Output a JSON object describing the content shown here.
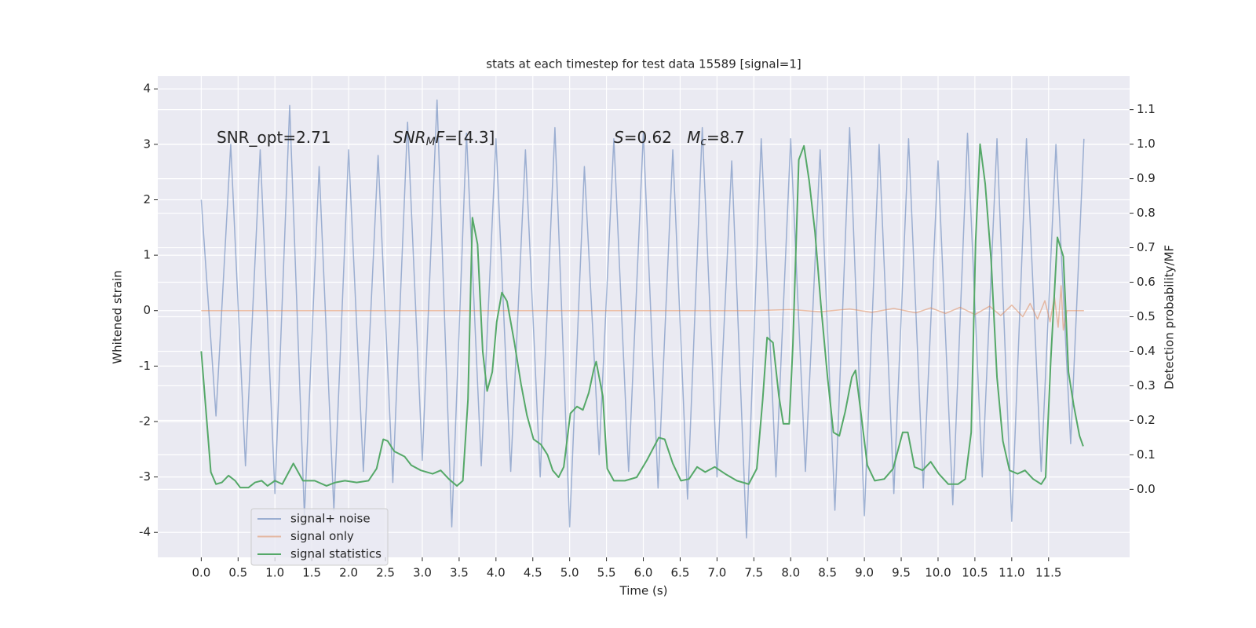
{
  "chart_data": {
    "type": "line",
    "title": "stats at each timestep for test data 15589 [signal=1]",
    "xlabel": "Time (s)",
    "ylabel": "Whitened strain",
    "y2label": "Detection probability/MF",
    "xlim": [
      -0.59,
      12.6
    ],
    "ylim": [
      -4.45,
      4.23
    ],
    "y2lim": [
      -0.197,
      1.197
    ],
    "xticks": [
      {
        "value": 0,
        "label": "0.0"
      },
      0.5,
      {
        "value": 1,
        "label": "1.0"
      },
      1.5,
      {
        "value": 2,
        "label": "2.0"
      },
      2.5,
      {
        "value": 3,
        "label": "3.0"
      },
      3.5,
      {
        "value": 4,
        "label": "4.0"
      },
      4.5,
      {
        "value": 5,
        "label": "5.0"
      },
      5.5,
      {
        "value": 6,
        "label": "6.0"
      },
      6.5,
      {
        "value": 7,
        "label": "7.0"
      },
      7.5,
      {
        "value": 8,
        "label": "8.0"
      },
      8.5,
      {
        "value": 9,
        "label": "9.0"
      },
      9.5,
      {
        "value": 10,
        "label": "10.0"
      },
      10.5,
      {
        "value": 11,
        "label": "11.0"
      },
      11.5
    ],
    "yticks": [
      -4,
      -3,
      -2,
      -1,
      0,
      1,
      2,
      3,
      4
    ],
    "y2ticks": [
      {
        "value": 0,
        "label": "0.0"
      },
      0.1,
      0.2,
      0.3,
      0.4,
      0.5,
      0.6,
      0.7,
      0.8,
      0.9,
      {
        "value": 1,
        "label": "1.0"
      },
      1.1
    ],
    "grid": true,
    "legend": "lower left",
    "annotations": [
      [
        {
          "text": "SNR_opt=2.71",
          "style": "normal"
        }
      ],
      [
        {
          "text": "SNR",
          "style": "italic"
        },
        {
          "text": "M",
          "style": "sub"
        },
        {
          "text": "F",
          "style": "italic"
        },
        {
          "text": "=[4.3]",
          "style": "normal"
        }
      ],
      [
        {
          "text": "S",
          "style": "italic"
        },
        {
          "text": "=0.62   ",
          "style": "normal"
        },
        {
          "text": "M",
          "style": "italic"
        },
        {
          "text": "c",
          "style": "sub"
        },
        {
          "text": "=8.7",
          "style": "normal"
        }
      ]
    ],
    "series": [
      {
        "name": "signal+ noise",
        "color": "#4c72b0",
        "alpha": 0.5,
        "x": [
          0,
          0.2,
          0.4,
          0.6,
          0.8,
          1.0,
          1.2,
          1.4,
          1.6,
          1.8,
          2.0,
          2.2,
          2.4,
          2.6,
          2.8,
          3.0,
          3.2,
          3.4,
          3.6,
          3.8,
          4.0,
          4.2,
          4.4,
          4.6,
          4.8,
          5.0,
          5.2,
          5.4,
          5.6,
          5.8,
          6.0,
          6.2,
          6.4,
          6.6,
          6.8,
          7.0,
          7.2,
          7.4,
          7.6,
          7.8,
          8.0,
          8.2,
          8.4,
          8.6,
          8.8,
          9.0,
          9.2,
          9.4,
          9.6,
          9.8,
          10.0,
          10.2,
          10.4,
          10.6,
          10.8,
          11.0,
          11.2,
          11.4,
          11.6,
          11.8,
          11.98
        ],
        "values": [
          2.0,
          -1.9,
          3.0,
          -2.8,
          2.9,
          -3.3,
          3.7,
          -3.7,
          2.6,
          -3.6,
          2.9,
          -2.9,
          2.8,
          -3.1,
          3.4,
          -2.7,
          3.8,
          -3.9,
          3.2,
          -2.8,
          3.1,
          -2.9,
          2.9,
          -3.0,
          3.3,
          -3.9,
          2.6,
          -2.6,
          3.1,
          -2.9,
          3.2,
          -3.2,
          2.9,
          -3.4,
          3.3,
          -3.0,
          2.7,
          -4.1,
          3.1,
          -3.0,
          3.1,
          -2.9,
          2.9,
          -3.6,
          3.3,
          -3.7,
          3.0,
          -3.3,
          3.1,
          -3.2,
          2.7,
          -3.5,
          3.2,
          -3.0,
          3.1,
          -3.8,
          3.1,
          -2.9,
          3.0,
          -2.4,
          3.1
        ]
      },
      {
        "name": "signal only",
        "color": "#dd8452",
        "alpha": 0.5,
        "x": [
          0,
          7.5,
          8.0,
          8.4,
          8.8,
          9.1,
          9.4,
          9.7,
          9.9,
          10.1,
          10.3,
          10.5,
          10.7,
          10.85,
          11.0,
          11.15,
          11.25,
          11.35,
          11.45,
          11.52,
          11.58,
          11.63,
          11.67,
          11.7,
          11.75,
          11.98
        ],
        "values": [
          0,
          0,
          0.02,
          -0.02,
          0.03,
          -0.03,
          0.04,
          -0.04,
          0.05,
          -0.05,
          0.06,
          -0.07,
          0.08,
          -0.09,
          0.1,
          -0.11,
          0.13,
          -0.15,
          0.18,
          -0.2,
          0.25,
          -0.3,
          0.45,
          -0.35,
          0,
          0
        ]
      },
      {
        "name": "signal statistics",
        "color": "#55a868",
        "alpha": 1,
        "axis": "y2",
        "x": [
          0,
          0.13,
          0.2,
          0.28,
          0.37,
          0.46,
          0.53,
          0.64,
          0.73,
          0.82,
          0.9,
          1.0,
          1.1,
          1.25,
          1.38,
          1.54,
          1.7,
          1.82,
          1.95,
          2.11,
          2.27,
          2.38,
          2.47,
          2.53,
          2.62,
          2.76,
          2.85,
          2.98,
          3.14,
          3.25,
          3.36,
          3.47,
          3.55,
          3.62,
          3.68,
          3.75,
          3.82,
          3.88,
          3.95,
          4.01,
          4.08,
          4.15,
          4.25,
          4.34,
          4.42,
          4.51,
          4.61,
          4.7,
          4.77,
          4.85,
          4.92,
          5.01,
          5.1,
          5.18,
          5.26,
          5.33,
          5.36,
          5.45,
          5.51,
          5.6,
          5.75,
          5.91,
          6.05,
          6.21,
          6.29,
          6.4,
          6.51,
          6.62,
          6.73,
          6.84,
          6.97,
          7.11,
          7.27,
          7.43,
          7.54,
          7.62,
          7.68,
          7.76,
          7.84,
          7.9,
          7.98,
          8.03,
          8.11,
          8.18,
          8.25,
          8.33,
          8.41,
          8.5,
          8.58,
          8.66,
          8.74,
          8.83,
          8.88,
          8.96,
          9.04,
          9.14,
          9.27,
          9.39,
          9.52,
          9.59,
          9.68,
          9.79,
          9.9,
          10.01,
          10.14,
          10.27,
          10.37,
          10.45,
          10.51,
          10.57,
          10.64,
          10.72,
          10.8,
          10.88,
          10.97,
          11.08,
          11.18,
          11.29,
          11.4,
          11.46,
          11.53,
          11.62,
          11.7,
          11.77,
          11.84,
          11.92,
          11.97
        ],
        "values": [
          0.4,
          0.05,
          0.015,
          0.02,
          0.04,
          0.025,
          0.005,
          0.005,
          0.02,
          0.025,
          0.01,
          0.025,
          0.015,
          0.075,
          0.025,
          0.025,
          0.01,
          0.02,
          0.025,
          0.02,
          0.025,
          0.06,
          0.145,
          0.14,
          0.11,
          0.095,
          0.07,
          0.055,
          0.045,
          0.055,
          0.03,
          0.01,
          0.025,
          0.26,
          0.787,
          0.71,
          0.4,
          0.285,
          0.34,
          0.485,
          0.57,
          0.545,
          0.425,
          0.305,
          0.215,
          0.145,
          0.13,
          0.1,
          0.055,
          0.035,
          0.065,
          0.22,
          0.24,
          0.23,
          0.28,
          0.35,
          0.37,
          0.27,
          0.06,
          0.025,
          0.025,
          0.035,
          0.085,
          0.15,
          0.145,
          0.075,
          0.025,
          0.03,
          0.065,
          0.05,
          0.065,
          0.045,
          0.025,
          0.015,
          0.06,
          0.26,
          0.44,
          0.425,
          0.27,
          0.19,
          0.19,
          0.42,
          0.955,
          0.995,
          0.895,
          0.745,
          0.535,
          0.325,
          0.165,
          0.155,
          0.225,
          0.325,
          0.345,
          0.21,
          0.07,
          0.025,
          0.03,
          0.06,
          0.165,
          0.165,
          0.065,
          0.055,
          0.08,
          0.045,
          0.015,
          0.015,
          0.03,
          0.165,
          0.72,
          1.0,
          0.885,
          0.665,
          0.325,
          0.14,
          0.055,
          0.045,
          0.055,
          0.03,
          0.015,
          0.035,
          0.375,
          0.73,
          0.675,
          0.34,
          0.245,
          0.155,
          0.125
        ]
      }
    ]
  }
}
